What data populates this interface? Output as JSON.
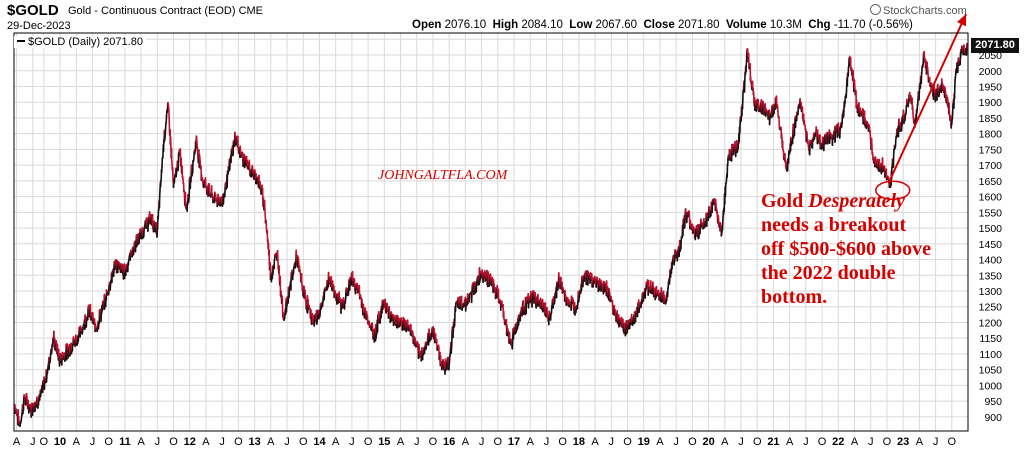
{
  "header": {
    "symbol": "$GOLD",
    "description": "Gold - Continuous Contract (EOD)",
    "exchange": "CME",
    "date": "29-Dec-2023",
    "open_label": "Open",
    "open_value": "2076.10",
    "high_label": "High",
    "high_value": "2084.10",
    "low_label": "Low",
    "low_value": "2067.60",
    "close_label": "Close",
    "close_value": "2071.80",
    "volume_label": "Volume",
    "volume_value": "10.3M",
    "chg_label": "Chg",
    "chg_value": "-11.70 (-0.56%)",
    "brand": "StockCharts.com"
  },
  "legend": {
    "label": "$GOLD (Daily) 2071.80"
  },
  "last_price": "2071.80",
  "watermark": "JOHNGALTFLA.COM",
  "annotation": {
    "line1_a": "Gold ",
    "line1_b": "Desperately",
    "line2": "needs a breakout",
    "line3": "off $500-$600 above",
    "line4": "the 2022 double",
    "line5": "bottom."
  },
  "colors": {
    "up": "#111111",
    "down": "#c8102e",
    "annotation": "#d40000",
    "grid": "#d9d9d9"
  },
  "chart_data": {
    "type": "line",
    "title": "$GOLD Gold - Continuous Contract (EOD)",
    "series": [
      {
        "name": "$GOLD (Daily)"
      }
    ],
    "x_start": 2009.29,
    "x_end": 2024.0,
    "ylim": [
      855,
      2120
    ],
    "y_ticks": [
      900,
      950,
      1000,
      1050,
      1100,
      1150,
      1200,
      1250,
      1300,
      1350,
      1400,
      1450,
      1500,
      1550,
      1600,
      1650,
      1700,
      1750,
      1800,
      1850,
      1900,
      1950,
      2000,
      2050,
      2100
    ],
    "x_ticks": [
      {
        "t": 2009.33,
        "label": "A"
      },
      {
        "t": 2009.58,
        "label": "J"
      },
      {
        "t": 2009.75,
        "label": "O"
      },
      {
        "t": 2010.0,
        "label": "10"
      },
      {
        "t": 2010.25,
        "label": "A"
      },
      {
        "t": 2010.5,
        "label": "J"
      },
      {
        "t": 2010.75,
        "label": "O"
      },
      {
        "t": 2011.0,
        "label": "11"
      },
      {
        "t": 2011.25,
        "label": "A"
      },
      {
        "t": 2011.5,
        "label": "J"
      },
      {
        "t": 2011.75,
        "label": "O"
      },
      {
        "t": 2012.0,
        "label": "12"
      },
      {
        "t": 2012.25,
        "label": "A"
      },
      {
        "t": 2012.5,
        "label": "J"
      },
      {
        "t": 2012.75,
        "label": "O"
      },
      {
        "t": 2013.0,
        "label": "13"
      },
      {
        "t": 2013.25,
        "label": "A"
      },
      {
        "t": 2013.5,
        "label": "J"
      },
      {
        "t": 2013.75,
        "label": "O"
      },
      {
        "t": 2014.0,
        "label": "14"
      },
      {
        "t": 2014.25,
        "label": "A"
      },
      {
        "t": 2014.5,
        "label": "J"
      },
      {
        "t": 2014.75,
        "label": "O"
      },
      {
        "t": 2015.0,
        "label": "15"
      },
      {
        "t": 2015.25,
        "label": "A"
      },
      {
        "t": 2015.5,
        "label": "J"
      },
      {
        "t": 2015.75,
        "label": "O"
      },
      {
        "t": 2016.0,
        "label": "16"
      },
      {
        "t": 2016.25,
        "label": "A"
      },
      {
        "t": 2016.5,
        "label": "J"
      },
      {
        "t": 2016.75,
        "label": "O"
      },
      {
        "t": 2017.0,
        "label": "17"
      },
      {
        "t": 2017.25,
        "label": "A"
      },
      {
        "t": 2017.5,
        "label": "J"
      },
      {
        "t": 2017.75,
        "label": "O"
      },
      {
        "t": 2018.0,
        "label": "18"
      },
      {
        "t": 2018.25,
        "label": "A"
      },
      {
        "t": 2018.5,
        "label": "J"
      },
      {
        "t": 2018.75,
        "label": "O"
      },
      {
        "t": 2019.0,
        "label": "19"
      },
      {
        "t": 2019.25,
        "label": "A"
      },
      {
        "t": 2019.5,
        "label": "J"
      },
      {
        "t": 2019.75,
        "label": "O"
      },
      {
        "t": 2020.0,
        "label": "20"
      },
      {
        "t": 2020.25,
        "label": "A"
      },
      {
        "t": 2020.5,
        "label": "J"
      },
      {
        "t": 2020.75,
        "label": "O"
      },
      {
        "t": 2021.0,
        "label": "21"
      },
      {
        "t": 2021.25,
        "label": "A"
      },
      {
        "t": 2021.5,
        "label": "J"
      },
      {
        "t": 2021.75,
        "label": "O"
      },
      {
        "t": 2022.0,
        "label": "22"
      },
      {
        "t": 2022.25,
        "label": "A"
      },
      {
        "t": 2022.5,
        "label": "J"
      },
      {
        "t": 2022.75,
        "label": "O"
      },
      {
        "t": 2023.0,
        "label": "23"
      },
      {
        "t": 2023.25,
        "label": "A"
      },
      {
        "t": 2023.5,
        "label": "J"
      },
      {
        "t": 2023.75,
        "label": "O"
      }
    ],
    "points": [
      [
        2009.3,
        940
      ],
      [
        2009.38,
        872
      ],
      [
        2009.45,
        960
      ],
      [
        2009.55,
        925
      ],
      [
        2009.7,
        965
      ],
      [
        2009.8,
        1040
      ],
      [
        2009.9,
        1150
      ],
      [
        2010.0,
        1080
      ],
      [
        2010.1,
        1105
      ],
      [
        2010.3,
        1160
      ],
      [
        2010.45,
        1240
      ],
      [
        2010.55,
        1180
      ],
      [
        2010.7,
        1270
      ],
      [
        2010.85,
        1385
      ],
      [
        2011.0,
        1360
      ],
      [
        2011.1,
        1420
      ],
      [
        2011.3,
        1500
      ],
      [
        2011.4,
        1530
      ],
      [
        2011.5,
        1490
      ],
      [
        2011.6,
        1780
      ],
      [
        2011.67,
        1890
      ],
      [
        2011.75,
        1630
      ],
      [
        2011.85,
        1740
      ],
      [
        2011.95,
        1560
      ],
      [
        2012.1,
        1780
      ],
      [
        2012.2,
        1650
      ],
      [
        2012.35,
        1600
      ],
      [
        2012.5,
        1580
      ],
      [
        2012.6,
        1680
      ],
      [
        2012.7,
        1790
      ],
      [
        2012.8,
        1730
      ],
      [
        2012.95,
        1680
      ],
      [
        2013.05,
        1660
      ],
      [
        2013.15,
        1580
      ],
      [
        2013.25,
        1350
      ],
      [
        2013.35,
        1420
      ],
      [
        2013.45,
        1210
      ],
      [
        2013.55,
        1320
      ],
      [
        2013.65,
        1410
      ],
      [
        2013.75,
        1300
      ],
      [
        2013.9,
        1200
      ],
      [
        2014.0,
        1230
      ],
      [
        2014.15,
        1340
      ],
      [
        2014.25,
        1290
      ],
      [
        2014.35,
        1250
      ],
      [
        2014.5,
        1340
      ],
      [
        2014.6,
        1300
      ],
      [
        2014.7,
        1230
      ],
      [
        2014.85,
        1160
      ],
      [
        2015.0,
        1270
      ],
      [
        2015.1,
        1215
      ],
      [
        2015.25,
        1200
      ],
      [
        2015.4,
        1180
      ],
      [
        2015.55,
        1090
      ],
      [
        2015.65,
        1130
      ],
      [
        2015.75,
        1180
      ],
      [
        2015.9,
        1060
      ],
      [
        2016.0,
        1070
      ],
      [
        2016.1,
        1250
      ],
      [
        2016.3,
        1270
      ],
      [
        2016.5,
        1360
      ],
      [
        2016.65,
        1330
      ],
      [
        2016.8,
        1260
      ],
      [
        2016.95,
        1130
      ],
      [
        2017.05,
        1200
      ],
      [
        2017.15,
        1250
      ],
      [
        2017.3,
        1280
      ],
      [
        2017.45,
        1250
      ],
      [
        2017.55,
        1210
      ],
      [
        2017.7,
        1340
      ],
      [
        2017.8,
        1270
      ],
      [
        2017.95,
        1250
      ],
      [
        2018.08,
        1350
      ],
      [
        2018.25,
        1330
      ],
      [
        2018.45,
        1300
      ],
      [
        2018.6,
        1210
      ],
      [
        2018.72,
        1180
      ],
      [
        2018.9,
        1230
      ],
      [
        2019.05,
        1320
      ],
      [
        2019.2,
        1290
      ],
      [
        2019.35,
        1275
      ],
      [
        2019.45,
        1400
      ],
      [
        2019.55,
        1430
      ],
      [
        2019.65,
        1550
      ],
      [
        2019.8,
        1480
      ],
      [
        2019.95,
        1520
      ],
      [
        2020.1,
        1580
      ],
      [
        2020.2,
        1480
      ],
      [
        2020.3,
        1720
      ],
      [
        2020.45,
        1760
      ],
      [
        2020.55,
        1950
      ],
      [
        2020.6,
        2070
      ],
      [
        2020.7,
        1900
      ],
      [
        2020.85,
        1880
      ],
      [
        2020.95,
        1850
      ],
      [
        2021.05,
        1900
      ],
      [
        2021.2,
        1690
      ],
      [
        2021.35,
        1850
      ],
      [
        2021.42,
        1900
      ],
      [
        2021.55,
        1750
      ],
      [
        2021.65,
        1800
      ],
      [
        2021.75,
        1770
      ],
      [
        2021.9,
        1790
      ],
      [
        2022.05,
        1820
      ],
      [
        2022.18,
        2040
      ],
      [
        2022.3,
        1880
      ],
      [
        2022.45,
        1830
      ],
      [
        2022.55,
        1720
      ],
      [
        2022.7,
        1690
      ],
      [
        2022.8,
        1630
      ],
      [
        2022.9,
        1800
      ],
      [
        2023.0,
        1850
      ],
      [
        2023.12,
        1920
      ],
      [
        2023.18,
        1820
      ],
      [
        2023.32,
        2050
      ],
      [
        2023.4,
        1970
      ],
      [
        2023.5,
        1920
      ],
      [
        2023.6,
        1960
      ],
      [
        2023.7,
        1890
      ],
      [
        2023.75,
        1830
      ],
      [
        2023.82,
        2000
      ],
      [
        2023.92,
        2070
      ],
      [
        2023.99,
        2071.8
      ]
    ],
    "annotations": {
      "trendline": {
        "from": [
          2022.78,
          1645
        ],
        "to": [
          2023.97,
          2180
        ]
      },
      "ellipse": {
        "center": [
          2022.84,
          1620
        ]
      }
    }
  }
}
